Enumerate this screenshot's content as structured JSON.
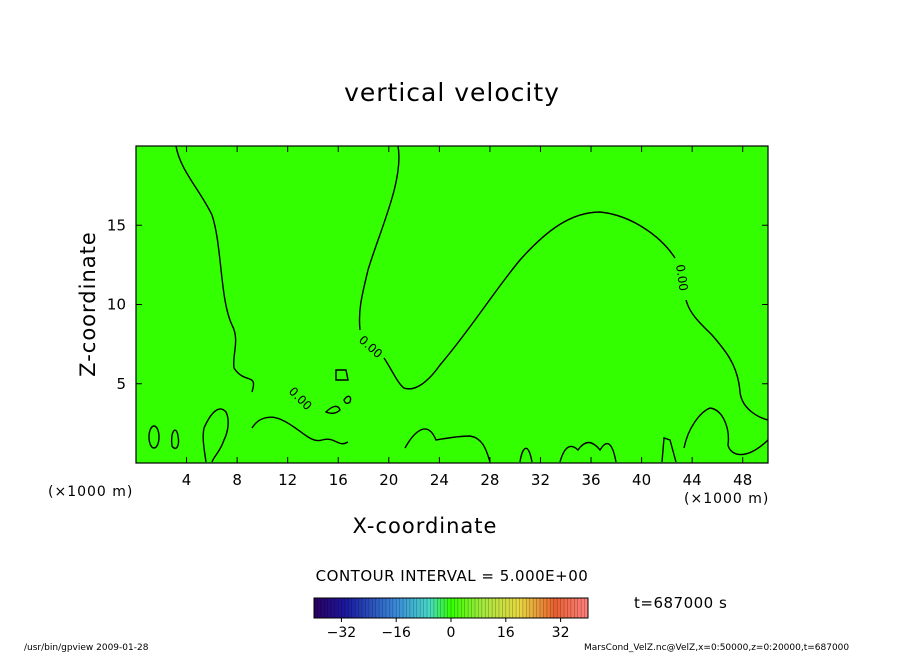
{
  "chart_data": {
    "type": "contour",
    "title": "vertical velocity",
    "xlabel": "X-coordinate",
    "ylabel": "Z-coordinate",
    "x_unit": "(×1000 m)",
    "y_unit": "(×1000 m)",
    "xlim": [
      0,
      50
    ],
    "ylim": [
      0,
      20
    ],
    "x_ticks": [
      4,
      8,
      12,
      16,
      20,
      24,
      28,
      32,
      36,
      40,
      44,
      48
    ],
    "y_ticks": [
      5,
      10,
      15
    ],
    "contour_interval": "CONTOUR INTERVAL = 5.000E+00",
    "contour_labels": [
      "0.00",
      "0.00",
      "0.00"
    ],
    "time": "t=687000 s",
    "colorbar": {
      "min": -40,
      "max": 40,
      "tick_values": [
        -32,
        -16,
        0,
        16,
        32
      ],
      "tick_labels": [
        "−32",
        "−16",
        "0",
        "16",
        "32"
      ],
      "colors": {
        "low": "#2a0060",
        "mid": "#33ff00",
        "high": "#ff3333"
      }
    },
    "field_color": "#33ff00"
  },
  "footer": {
    "left": "/usr/bin/gpview   2009-01-28",
    "right": "MarsCond_VelZ.nc@VelZ,x=0:50000,z=0:20000,t=687000"
  }
}
